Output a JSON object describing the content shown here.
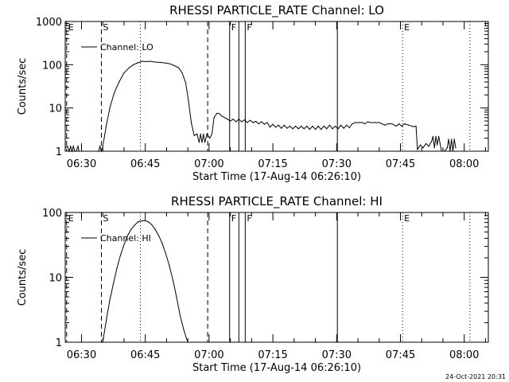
{
  "footer": {
    "timestamp": "24-Oct-2021 20:31"
  },
  "chart_data": [
    {
      "type": "line",
      "title": "RHESSI PARTICLE_RATE Channel: LO",
      "xlabel": "Start Time (17-Aug-14 06:26:10)",
      "ylabel": "Counts/sec",
      "x_unit": "UT",
      "xlim": [
        "06:26:10",
        "08:05:40"
      ],
      "ylim": [
        1,
        1000
      ],
      "y_scale": "log",
      "grid": false,
      "legend": {
        "position": "top-left",
        "entries": [
          "Channel: LO"
        ]
      },
      "x_ticks": [
        "06:30",
        "06:45",
        "07:00",
        "07:15",
        "07:30",
        "07:45",
        "08:00"
      ],
      "y_ticks": [
        "1",
        "10",
        "100",
        "1000"
      ],
      "event_lines": [
        {
          "label": "E",
          "time": "06:26:30",
          "style": "dashed"
        },
        {
          "label": "S",
          "time": "06:34:40",
          "style": "dashed"
        },
        {
          "label": "",
          "time": "06:43:50",
          "style": "dotted"
        },
        {
          "label": "",
          "time": "06:59:40",
          "style": "dashed"
        },
        {
          "label": "F",
          "time": "07:04:50",
          "style": "solid"
        },
        {
          "label": "",
          "time": "07:07:00",
          "style": "solid"
        },
        {
          "label": "F",
          "time": "07:08:30",
          "style": "solid"
        },
        {
          "label": "",
          "time": "07:30:10",
          "style": "solid"
        },
        {
          "label": "E",
          "time": "07:45:30",
          "style": "dotted"
        },
        {
          "label": "",
          "time": "08:01:20",
          "style": "dotted"
        }
      ],
      "series": [
        {
          "name": "Channel: LO",
          "points": [
            [
              "06:26:10",
              1.2
            ],
            [
              "06:26:40",
              1.3
            ],
            [
              "06:27:05",
              1.0
            ],
            [
              "06:27:25",
              1.3
            ],
            [
              "06:27:45",
              1.0
            ],
            [
              "06:28:05",
              1.3
            ],
            [
              "06:28:25",
              1.0
            ],
            [
              "06:28:45",
              1.0
            ],
            [
              "06:29:10",
              1.3
            ],
            [
              "06:29:25",
              1.0
            ],
            [
              "06:34:00",
              1.0
            ],
            [
              "06:34:20",
              1.3
            ],
            [
              "06:34:40",
              1.0
            ],
            [
              "06:35:00",
              1.3
            ],
            [
              "06:35:20",
              2.0
            ],
            [
              "06:35:50",
              4.0
            ],
            [
              "06:36:40",
              10
            ],
            [
              "06:37:40",
              22
            ],
            [
              "06:38:50",
              40
            ],
            [
              "06:40:00",
              65
            ],
            [
              "06:41:10",
              85
            ],
            [
              "06:42:10",
              100
            ],
            [
              "06:43:10",
              110
            ],
            [
              "06:44:10",
              120
            ],
            [
              "06:45:10",
              118
            ],
            [
              "06:46:10",
              120
            ],
            [
              "06:47:20",
              115
            ],
            [
              "06:48:30",
              113
            ],
            [
              "06:49:40",
              110
            ],
            [
              "06:50:50",
              105
            ],
            [
              "06:51:50",
              95
            ],
            [
              "06:52:50",
              85
            ],
            [
              "06:53:40",
              65
            ],
            [
              "06:54:30",
              38
            ],
            [
              "06:55:10",
              14
            ],
            [
              "06:55:50",
              4.5
            ],
            [
              "06:56:30",
              2.3
            ],
            [
              "06:57:10",
              2.5
            ],
            [
              "06:57:40",
              1.6
            ],
            [
              "06:58:00",
              2.5
            ],
            [
              "06:58:20",
              1.6
            ],
            [
              "06:58:40",
              2.5
            ],
            [
              "06:59:00",
              1.6
            ],
            [
              "06:59:30",
              2.5
            ],
            [
              "07:00:10",
              2.0
            ],
            [
              "07:00:40",
              2.5
            ],
            [
              "07:01:10",
              6.0
            ],
            [
              "07:01:50",
              7.5
            ],
            [
              "07:02:20",
              7.5
            ],
            [
              "07:03:00",
              6.5
            ],
            [
              "07:03:40",
              6.0
            ],
            [
              "07:04:20",
              5.5
            ],
            [
              "07:05:00",
              5.0
            ],
            [
              "07:05:40",
              5.5
            ],
            [
              "07:06:20",
              4.8
            ],
            [
              "07:07:00",
              5.5
            ],
            [
              "07:07:40",
              4.8
            ],
            [
              "07:08:20",
              5.3
            ],
            [
              "07:09:00",
              4.6
            ],
            [
              "07:09:40",
              5.2
            ],
            [
              "07:10:20",
              4.6
            ],
            [
              "07:11:00",
              4.9
            ],
            [
              "07:11:40",
              4.3
            ],
            [
              "07:12:20",
              4.8
            ],
            [
              "07:13:00",
              4.2
            ],
            [
              "07:13:40",
              4.6
            ],
            [
              "07:14:20",
              3.6
            ],
            [
              "07:15:00",
              4.2
            ],
            [
              "07:15:40",
              3.6
            ],
            [
              "07:16:20",
              4.0
            ],
            [
              "07:17:00",
              3.4
            ],
            [
              "07:17:40",
              4.0
            ],
            [
              "07:18:20",
              3.4
            ],
            [
              "07:19:00",
              3.8
            ],
            [
              "07:19:40",
              3.3
            ],
            [
              "07:20:20",
              3.8
            ],
            [
              "07:21:00",
              3.3
            ],
            [
              "07:21:40",
              3.8
            ],
            [
              "07:22:20",
              3.3
            ],
            [
              "07:23:00",
              3.8
            ],
            [
              "07:23:40",
              3.2
            ],
            [
              "07:24:20",
              3.8
            ],
            [
              "07:25:00",
              3.2
            ],
            [
              "07:25:40",
              3.8
            ],
            [
              "07:26:20",
              3.2
            ],
            [
              "07:27:00",
              3.8
            ],
            [
              "07:27:40",
              3.3
            ],
            [
              "07:28:20",
              4.0
            ],
            [
              "07:29:00",
              3.3
            ],
            [
              "07:29:40",
              3.8
            ],
            [
              "07:30:20",
              3.3
            ],
            [
              "07:31:00",
              4.0
            ],
            [
              "07:31:40",
              3.4
            ],
            [
              "07:32:20",
              4.0
            ],
            [
              "07:33:00",
              3.5
            ],
            [
              "07:33:40",
              4.3
            ],
            [
              "07:34:20",
              4.6
            ],
            [
              "07:35:00",
              4.6
            ],
            [
              "07:36:00",
              4.6
            ],
            [
              "07:36:40",
              4.3
            ],
            [
              "07:37:20",
              4.8
            ],
            [
              "07:38:00",
              4.6
            ],
            [
              "07:39:00",
              4.6
            ],
            [
              "07:40:00",
              4.6
            ],
            [
              "07:40:40",
              4.3
            ],
            [
              "07:41:20",
              4.0
            ],
            [
              "07:42:00",
              4.3
            ],
            [
              "07:43:00",
              4.3
            ],
            [
              "07:44:00",
              3.8
            ],
            [
              "07:44:40",
              4.3
            ],
            [
              "07:45:20",
              3.8
            ],
            [
              "07:46:00",
              4.3
            ],
            [
              "07:47:00",
              4.0
            ],
            [
              "07:48:00",
              3.7
            ],
            [
              "07:48:40",
              3.8
            ],
            [
              "07:49:00",
              1.1
            ],
            [
              "07:49:40",
              1.4
            ],
            [
              "07:50:20",
              1.2
            ],
            [
              "07:51:00",
              1.5
            ],
            [
              "07:51:40",
              1.3
            ],
            [
              "07:52:20",
              1.7
            ],
            [
              "07:52:40",
              2.2
            ],
            [
              "07:53:00",
              1.2
            ],
            [
              "07:53:20",
              2.2
            ],
            [
              "07:53:40",
              1.4
            ],
            [
              "07:54:00",
              2.2
            ],
            [
              "07:54:40",
              1.0
            ],
            [
              "07:55:20",
              1.0
            ],
            [
              "07:56:00",
              1.2
            ],
            [
              "07:56:20",
              1.9
            ],
            [
              "07:56:40",
              1.0
            ],
            [
              "07:57:00",
              1.9
            ],
            [
              "07:57:20",
              1.0
            ],
            [
              "07:57:40",
              1.9
            ],
            [
              "07:58:00",
              1.2
            ]
          ]
        }
      ]
    },
    {
      "type": "line",
      "title": "RHESSI PARTICLE_RATE Channel: HI",
      "xlabel": "Start Time (17-Aug-14 06:26:10)",
      "ylabel": "Counts/sec",
      "x_unit": "UT",
      "xlim": [
        "06:26:10",
        "08:05:40"
      ],
      "ylim": [
        1,
        100
      ],
      "y_scale": "log",
      "grid": false,
      "legend": {
        "position": "top-left",
        "entries": [
          "Channel: HI"
        ]
      },
      "x_ticks": [
        "06:30",
        "06:45",
        "07:00",
        "07:15",
        "07:30",
        "07:45",
        "08:00"
      ],
      "y_ticks": [
        "1",
        "10",
        "100"
      ],
      "event_lines": [
        {
          "label": "E",
          "time": "06:26:30",
          "style": "dashed"
        },
        {
          "label": "S",
          "time": "06:34:40",
          "style": "dashed"
        },
        {
          "label": "",
          "time": "06:43:50",
          "style": "dotted"
        },
        {
          "label": "",
          "time": "06:59:40",
          "style": "dashed"
        },
        {
          "label": "F",
          "time": "07:04:50",
          "style": "solid"
        },
        {
          "label": "",
          "time": "07:07:00",
          "style": "solid"
        },
        {
          "label": "F",
          "time": "07:08:30",
          "style": "solid"
        },
        {
          "label": "",
          "time": "07:30:10",
          "style": "solid"
        },
        {
          "label": "E",
          "time": "07:45:30",
          "style": "dotted"
        },
        {
          "label": "",
          "time": "08:01:20",
          "style": "dotted"
        }
      ],
      "series": [
        {
          "name": "Channel: HI",
          "points": [
            [
              "06:35:00",
              1.0
            ],
            [
              "06:35:50",
              2.2
            ],
            [
              "06:36:40",
              4.5
            ],
            [
              "06:37:30",
              8.0
            ],
            [
              "06:38:20",
              14
            ],
            [
              "06:39:10",
              22
            ],
            [
              "06:40:00",
              32
            ],
            [
              "06:40:50",
              44
            ],
            [
              "06:41:40",
              55
            ],
            [
              "06:42:30",
              64
            ],
            [
              "06:43:20",
              72
            ],
            [
              "06:44:00",
              74
            ],
            [
              "06:44:50",
              75
            ],
            [
              "06:45:40",
              72
            ],
            [
              "06:46:30",
              65
            ],
            [
              "06:47:20",
              55
            ],
            [
              "06:48:10",
              44
            ],
            [
              "06:49:00",
              33
            ],
            [
              "06:49:50",
              23
            ],
            [
              "06:50:40",
              15
            ],
            [
              "06:51:30",
              9.0
            ],
            [
              "06:52:20",
              5.0
            ],
            [
              "06:53:10",
              2.6
            ],
            [
              "06:54:00",
              1.6
            ],
            [
              "06:54:40",
              1.15
            ],
            [
              "06:55:00",
              1.0
            ]
          ]
        }
      ]
    }
  ]
}
